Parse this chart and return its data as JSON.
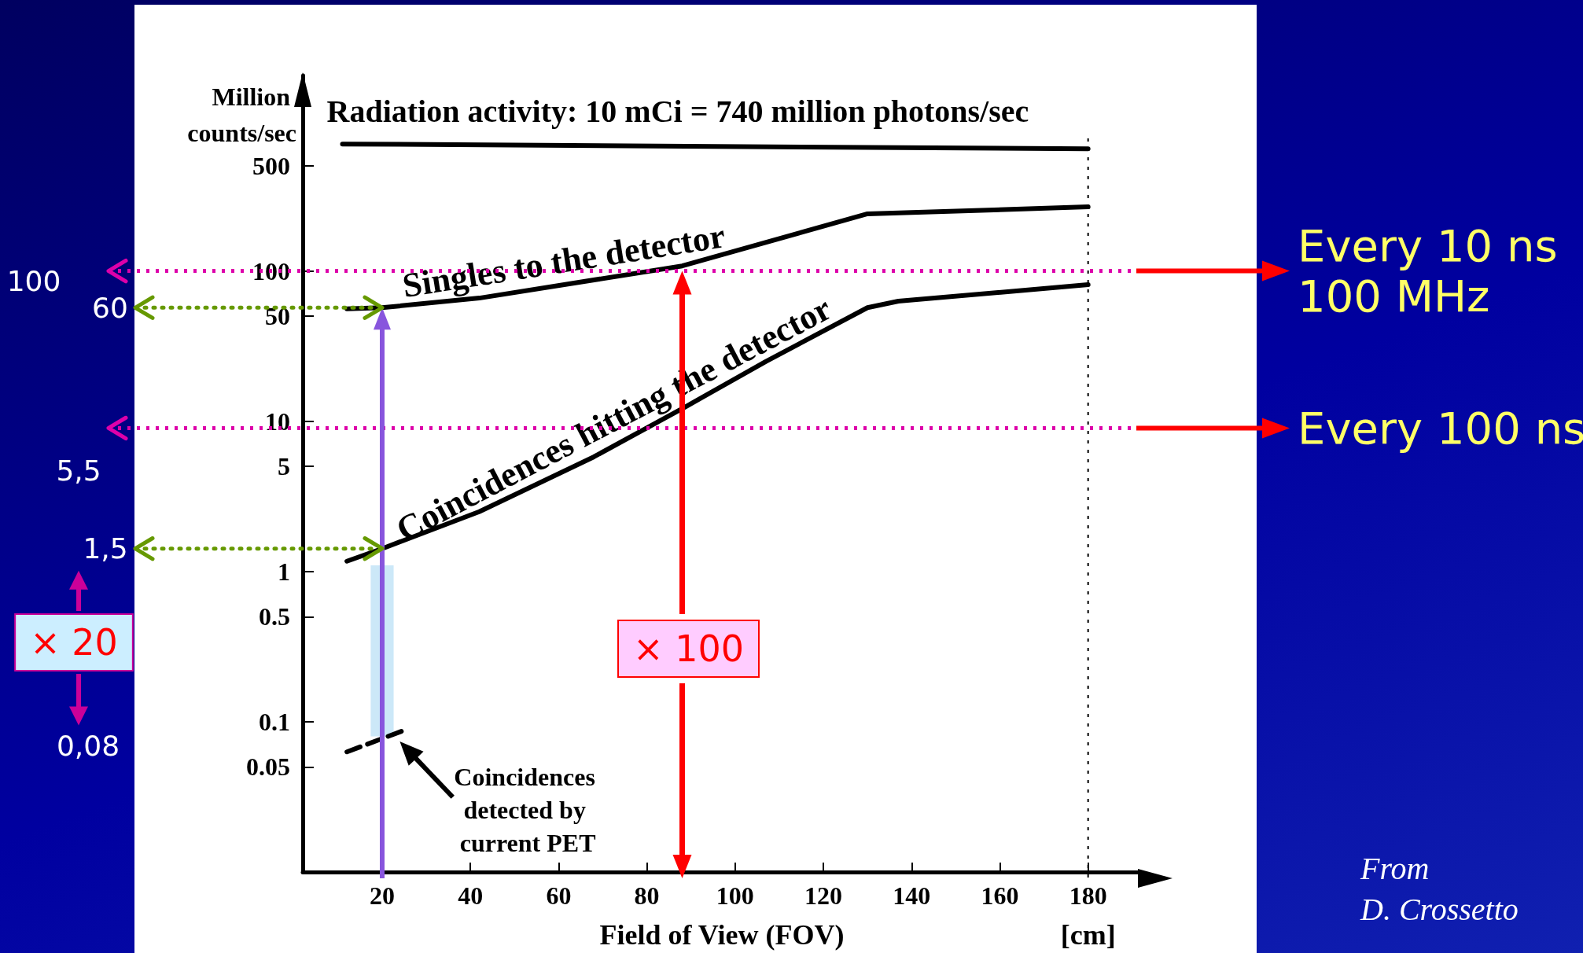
{
  "chart_data": {
    "type": "line",
    "xlabel": "Field of View (FOV)",
    "ylabel": "Million counts/sec",
    "log": "y",
    "xlim": [
      2,
      192
    ],
    "xticks": [
      20,
      40,
      60,
      80,
      100,
      120,
      140,
      160,
      180
    ],
    "ylim": [
      0.01,
      2000
    ],
    "yticks": [
      0.05,
      0.1,
      0.5,
      1,
      5,
      10,
      50,
      100,
      500
    ],
    "grid": false,
    "legend": "top",
    "marker": "none",
    "line_style": "solid",
    "series": [
      {
        "name": "Radiation activity: 10 mCi = 740 million photons/sec",
        "color": "#000000",
        "x": [
          11,
          180
        ],
        "values": [
          700,
          650
        ]
      },
      {
        "name": "Singles to the detector",
        "color": "#000000",
        "x": [
          12,
          20,
          42,
          88,
          130,
          180
        ],
        "values": [
          56,
          57,
          66,
          108,
          240,
          267
        ]
      },
      {
        "name": "Coincidences hitting the detector",
        "color": "#000000",
        "x": [
          12,
          20,
          42,
          68,
          89,
          107,
          130,
          137,
          180
        ],
        "values": [
          1.17,
          1.42,
          2.5,
          5.8,
          12.6,
          25,
          57,
          63,
          81
        ]
      },
      {
        "name": "Coincidences detected by current PET",
        "color": "#000000",
        "x": [
          12,
          26
        ],
        "values": [
          0.063,
          0.09
        ],
        "line_style": "dashed"
      },
      {
        "type": "bar",
        "color": "#cce8f8",
        "x": [
          20
        ],
        "base": [
          0.08
        ],
        "values": [
          1.02
        ]
      }
    ],
    "ref_lines": [
      {
        "axis": "y",
        "value": 100,
        "label": "Every 10 ns\n100 MHz",
        "color": "#dd00aa",
        "line_style": "dotted"
      },
      {
        "axis": "y",
        "value": 9,
        "label": "Every 100 ns",
        "color": "#dd00aa",
        "line_style": "dotted"
      },
      {
        "axis": "x",
        "value": 180,
        "color": "#000000",
        "line_style": "dotted"
      }
    ],
    "annotations": [
      "100",
      {
        "text": "60",
        "x": 20,
        "y": 57
      },
      "5,5",
      {
        "text": "1,5",
        "x": 20,
        "y": 1.42
      },
      "0,08",
      "× 20",
      "× 100",
      "[cm]",
      "From\nD. Crossetto"
    ]
  }
}
